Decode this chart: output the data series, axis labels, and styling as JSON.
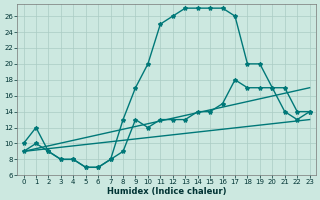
{
  "xlabel": "Humidex (Indice chaleur)",
  "ylabel": "",
  "bg_color": "#cce8e0",
  "grid_color": "#aaccc4",
  "line_color": "#007878",
  "xlim": [
    -0.5,
    23.5
  ],
  "ylim": [
    6,
    27.5
  ],
  "xticks": [
    0,
    1,
    2,
    3,
    4,
    5,
    6,
    7,
    8,
    9,
    10,
    11,
    12,
    13,
    14,
    15,
    16,
    17,
    18,
    19,
    20,
    21,
    22,
    23
  ],
  "yticks": [
    6,
    8,
    10,
    12,
    14,
    16,
    18,
    20,
    22,
    24,
    26
  ],
  "series1_x": [
    0,
    1,
    2,
    3,
    4,
    5,
    6,
    7,
    8,
    9,
    10,
    11,
    12,
    13,
    14,
    15,
    16,
    17,
    18,
    19,
    20,
    21,
    22,
    23
  ],
  "series1_y": [
    10,
    12,
    9,
    8,
    8,
    7,
    7,
    8,
    13,
    17,
    20,
    25,
    26,
    27,
    27,
    27,
    27,
    26,
    20,
    20,
    17,
    17,
    14,
    14
  ],
  "series2_x": [
    0,
    1,
    2,
    3,
    4,
    5,
    6,
    7,
    8,
    9,
    10,
    11,
    12,
    13,
    14,
    15,
    16,
    17,
    18,
    19,
    20,
    21,
    22,
    23
  ],
  "series2_y": [
    9,
    10,
    9,
    8,
    8,
    7,
    7,
    8,
    9,
    13,
    12,
    13,
    13,
    13,
    14,
    14,
    15,
    18,
    17,
    17,
    17,
    14,
    13,
    14
  ],
  "series3_x": [
    0,
    23
  ],
  "series3_y": [
    9,
    17
  ],
  "series4_x": [
    0,
    23
  ],
  "series4_y": [
    9,
    13
  ],
  "marker": "*",
  "markersize": 3,
  "linewidth": 1.0,
  "xlabel_fontsize": 6,
  "tick_fontsize": 5
}
